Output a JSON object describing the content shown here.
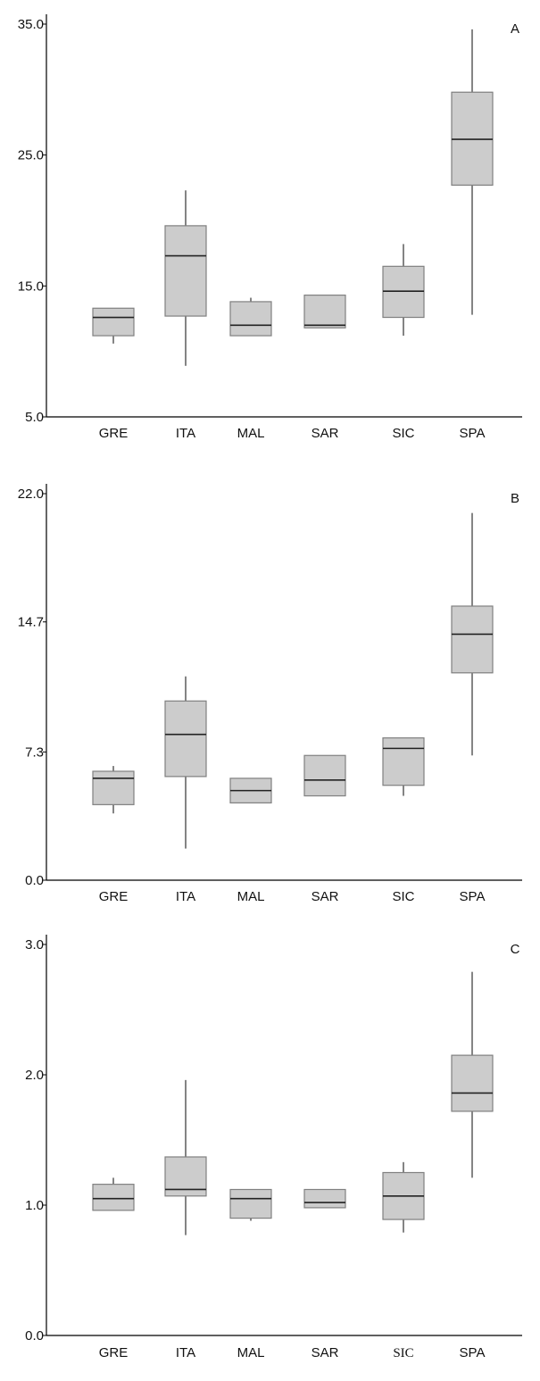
{
  "colors": {
    "box_fill": "#cccccc",
    "box_stroke": "#808080",
    "median": "#222222",
    "whisker": "#333333",
    "axis": "#000000"
  },
  "chart_data": [
    {
      "type": "box",
      "panel_label": "A",
      "categories": [
        "GRE",
        "ITA",
        "MAL",
        "SAR",
        "SIC",
        "SPA"
      ],
      "ylim": [
        5.0,
        35.0
      ],
      "yticks": [
        "5.0",
        "15.0",
        "25.0",
        "35.0"
      ],
      "series": [
        {
          "category": "GRE",
          "min": 10.6,
          "q1": 11.2,
          "median": 12.6,
          "q3": 13.3,
          "max": 13.3
        },
        {
          "category": "ITA",
          "min": 8.9,
          "q1": 12.7,
          "median": 17.3,
          "q3": 19.6,
          "max": 22.3
        },
        {
          "category": "MAL",
          "min": 11.2,
          "q1": 11.2,
          "median": 12.0,
          "q3": 13.8,
          "max": 14.1
        },
        {
          "category": "SAR",
          "min": 11.8,
          "q1": 11.8,
          "median": 12.0,
          "q3": 14.3,
          "max": 14.3
        },
        {
          "category": "SIC",
          "min": 11.2,
          "q1": 12.6,
          "median": 14.6,
          "q3": 16.5,
          "max": 18.2
        },
        {
          "category": "SPA",
          "min": 12.8,
          "q1": 22.7,
          "median": 26.2,
          "q3": 29.8,
          "max": 34.6
        }
      ]
    },
    {
      "type": "box",
      "panel_label": "B",
      "categories": [
        "GRE",
        "ITA",
        "MAL",
        "SAR",
        "SIC",
        "SPA"
      ],
      "ylim": [
        0.0,
        22.0
      ],
      "yticks": [
        "0.0",
        "7.3",
        "14.7",
        "22.0"
      ],
      "series": [
        {
          "category": "GRE",
          "min": 3.8,
          "q1": 4.3,
          "median": 5.8,
          "q3": 6.2,
          "max": 6.5
        },
        {
          "category": "ITA",
          "min": 1.8,
          "q1": 5.9,
          "median": 8.3,
          "q3": 10.2,
          "max": 11.6
        },
        {
          "category": "MAL",
          "min": 4.4,
          "q1": 4.4,
          "median": 5.1,
          "q3": 5.8,
          "max": 5.8
        },
        {
          "category": "SAR",
          "min": 4.8,
          "q1": 4.8,
          "median": 5.7,
          "q3": 7.1,
          "max": 7.1
        },
        {
          "category": "SIC",
          "min": 4.8,
          "q1": 5.4,
          "median": 7.5,
          "q3": 8.1,
          "max": 8.1
        },
        {
          "category": "SPA",
          "min": 7.1,
          "q1": 11.8,
          "median": 14.0,
          "q3": 15.6,
          "max": 20.9
        }
      ]
    },
    {
      "type": "box",
      "panel_label": "C",
      "categories": [
        "GRE",
        "ITA",
        "MAL",
        "SAR",
        "SIC",
        "SPA"
      ],
      "ylim": [
        0.0,
        3.0
      ],
      "yticks": [
        "0.0",
        "1.0",
        "2.0",
        "3.0"
      ],
      "series": [
        {
          "category": "GRE",
          "min": 0.96,
          "q1": 0.96,
          "median": 1.05,
          "q3": 1.16,
          "max": 1.21
        },
        {
          "category": "ITA",
          "min": 0.77,
          "q1": 1.07,
          "median": 1.12,
          "q3": 1.37,
          "max": 1.96
        },
        {
          "category": "MAL",
          "min": 0.88,
          "q1": 0.9,
          "median": 1.05,
          "q3": 1.12,
          "max": 1.12
        },
        {
          "category": "SAR",
          "min": 0.98,
          "q1": 0.98,
          "median": 1.02,
          "q3": 1.12,
          "max": 1.12
        },
        {
          "category": "SIC",
          "min": 0.79,
          "q1": 0.89,
          "median": 1.07,
          "q3": 1.25,
          "max": 1.33
        },
        {
          "category": "SPA",
          "min": 1.21,
          "q1": 1.72,
          "median": 1.86,
          "q3": 2.15,
          "max": 2.79
        }
      ]
    }
  ]
}
